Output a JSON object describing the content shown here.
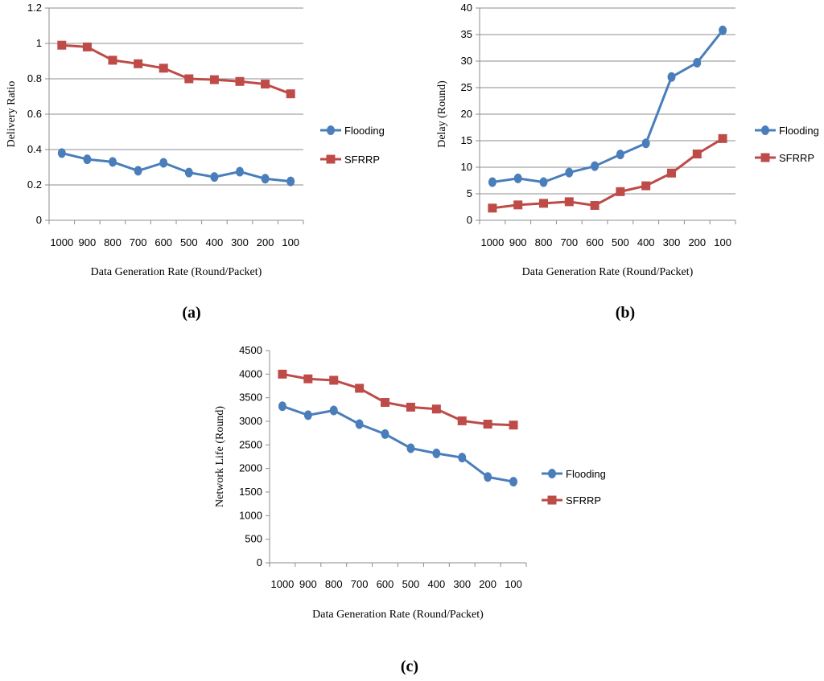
{
  "chart_data": [
    {
      "type": "line",
      "caption": "(a)",
      "categories": [
        "1000",
        "900",
        "800",
        "700",
        "600",
        "500",
        "400",
        "300",
        "200",
        "100"
      ],
      "xlabel": "Data Generation Rate (Round/Packet)",
      "ylabel": "Delivery Ratio",
      "ylim": [
        0,
        1.2
      ],
      "yticks": [
        "0",
        "0.2",
        "0.4",
        "0.6",
        "0.8",
        "1",
        "1.2"
      ],
      "grid": true,
      "legend_position": "right",
      "series": [
        {
          "name": "Flooding",
          "color": "#4a7ebb",
          "marker": "circle",
          "values": [
            0.38,
            0.345,
            0.33,
            0.28,
            0.325,
            0.27,
            0.245,
            0.275,
            0.235,
            0.22
          ]
        },
        {
          "name": "SFRRP",
          "color": "#be4b48",
          "marker": "square",
          "values": [
            0.99,
            0.98,
            0.905,
            0.885,
            0.86,
            0.8,
            0.795,
            0.785,
            0.77,
            0.715
          ]
        }
      ]
    },
    {
      "type": "line",
      "caption": "(b)",
      "categories": [
        "1000",
        "900",
        "800",
        "700",
        "600",
        "500",
        "400",
        "300",
        "200",
        "100"
      ],
      "xlabel": "Data Generation Rate (Round/Packet)",
      "ylabel": "Delay (Round)",
      "ylim": [
        0,
        40
      ],
      "yticks": [
        "0",
        "5",
        "10",
        "15",
        "20",
        "25",
        "30",
        "35",
        "40"
      ],
      "grid": true,
      "legend_position": "right",
      "series": [
        {
          "name": "Flooding",
          "color": "#4a7ebb",
          "marker": "circle",
          "values": [
            7.2,
            7.9,
            7.2,
            9.0,
            10.2,
            12.4,
            14.5,
            27.0,
            29.7,
            35.8
          ]
        },
        {
          "name": "SFRRP",
          "color": "#be4b48",
          "marker": "square",
          "values": [
            2.3,
            2.9,
            3.2,
            3.5,
            2.8,
            5.4,
            6.5,
            8.9,
            12.5,
            15.4
          ]
        }
      ]
    },
    {
      "type": "line",
      "caption": "(c)",
      "categories": [
        "1000",
        "900",
        "800",
        "700",
        "600",
        "500",
        "400",
        "300",
        "200",
        "100"
      ],
      "xlabel": "Data Generation Rate  (Round/Packet)",
      "ylabel": "Network Life (Round)",
      "ylim": [
        0,
        4500
      ],
      "yticks": [
        "0",
        "500",
        "1000",
        "1500",
        "2000",
        "2500",
        "3000",
        "3500",
        "4000",
        "4500"
      ],
      "grid": false,
      "legend_position": "right",
      "series": [
        {
          "name": "Flooding",
          "color": "#4a7ebb",
          "marker": "circle",
          "values": [
            3320,
            3130,
            3230,
            2940,
            2730,
            2430,
            2320,
            2230,
            1820,
            1720
          ]
        },
        {
          "name": "SFRRP",
          "color": "#be4b48",
          "marker": "square",
          "values": [
            4000,
            3900,
            3870,
            3700,
            3400,
            3300,
            3260,
            3010,
            2940,
            2920
          ]
        }
      ]
    }
  ]
}
